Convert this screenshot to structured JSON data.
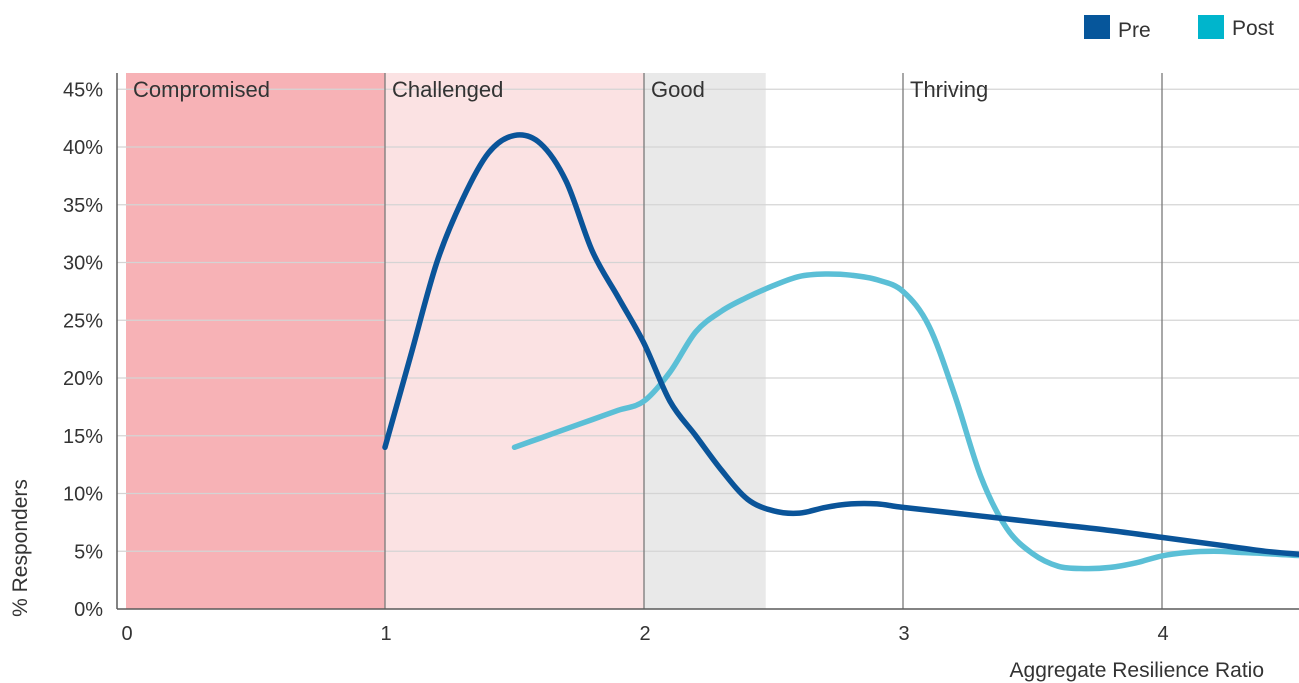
{
  "chart_data": {
    "type": "line",
    "xlabel": "Aggregate Resilience Ratio",
    "ylabel": "% Responders",
    "xlim": [
      0,
      4.6
    ],
    "ylim": [
      0,
      45
    ],
    "x_ticks": [
      {
        "value": 0,
        "label": "0"
      },
      {
        "value": 1,
        "label": "1"
      },
      {
        "value": 2,
        "label": "2"
      },
      {
        "value": 3,
        "label": "3"
      },
      {
        "value": 4,
        "label": "4"
      }
    ],
    "y_ticks": [
      {
        "value": 0,
        "label": "0%"
      },
      {
        "value": 5,
        "label": "5%"
      },
      {
        "value": 10,
        "label": "10%"
      },
      {
        "value": 15,
        "label": "15%"
      },
      {
        "value": 20,
        "label": "20%"
      },
      {
        "value": 25,
        "label": "25%"
      },
      {
        "value": 30,
        "label": "30%"
      },
      {
        "value": 35,
        "label": "35%"
      },
      {
        "value": 40,
        "label": "40%"
      },
      {
        "value": 45,
        "label": "45%"
      }
    ],
    "grid": "horizontal",
    "legend_position": "top-right",
    "zones": [
      {
        "label": "Compromised",
        "from": 0,
        "to": 1,
        "color": "#f7b2b6"
      },
      {
        "label": "Challenged",
        "from": 1,
        "to": 2,
        "color": "#fbe2e3"
      },
      {
        "label": "Good",
        "from": 2,
        "to": 2.47,
        "color": "#e9e9e9"
      },
      {
        "label": "Thriving",
        "from": 3,
        "to": 4.6,
        "color": "#ffffff"
      }
    ],
    "vertical_lines": [
      1,
      2,
      3,
      4
    ],
    "series": [
      {
        "name": "Pre",
        "color": "#0a5499",
        "points": [
          [
            1.0,
            14.0
          ],
          [
            1.1,
            22.0
          ],
          [
            1.2,
            30.0
          ],
          [
            1.3,
            35.5
          ],
          [
            1.4,
            39.5
          ],
          [
            1.5,
            41.0
          ],
          [
            1.6,
            40.3
          ],
          [
            1.7,
            37.0
          ],
          [
            1.8,
            31.0
          ],
          [
            1.9,
            27.0
          ],
          [
            2.0,
            23.0
          ],
          [
            2.1,
            18.0
          ],
          [
            2.2,
            15.0
          ],
          [
            2.3,
            12.0
          ],
          [
            2.4,
            9.5
          ],
          [
            2.5,
            8.5
          ],
          [
            2.6,
            8.3
          ],
          [
            2.7,
            8.8
          ],
          [
            2.8,
            9.1
          ],
          [
            2.9,
            9.1
          ],
          [
            3.0,
            8.8
          ],
          [
            3.2,
            8.3
          ],
          [
            3.4,
            7.8
          ],
          [
            3.6,
            7.3
          ],
          [
            3.8,
            6.8
          ],
          [
            4.0,
            6.2
          ],
          [
            4.2,
            5.6
          ],
          [
            4.4,
            5.0
          ],
          [
            4.55,
            4.7
          ]
        ]
      },
      {
        "name": "Post",
        "color": "#5bbfd6",
        "points": [
          [
            1.5,
            14.0
          ],
          [
            1.6,
            14.8
          ],
          [
            1.7,
            15.6
          ],
          [
            1.8,
            16.4
          ],
          [
            1.9,
            17.2
          ],
          [
            2.0,
            18.0
          ],
          [
            2.1,
            20.5
          ],
          [
            2.2,
            24.0
          ],
          [
            2.3,
            25.8
          ],
          [
            2.4,
            27.0
          ],
          [
            2.5,
            28.0
          ],
          [
            2.6,
            28.8
          ],
          [
            2.7,
            29.0
          ],
          [
            2.8,
            28.9
          ],
          [
            2.9,
            28.5
          ],
          [
            3.0,
            27.5
          ],
          [
            3.1,
            24.5
          ],
          [
            3.2,
            18.5
          ],
          [
            3.3,
            11.5
          ],
          [
            3.4,
            7.0
          ],
          [
            3.5,
            4.8
          ],
          [
            3.6,
            3.7
          ],
          [
            3.7,
            3.5
          ],
          [
            3.8,
            3.6
          ],
          [
            3.9,
            4.0
          ],
          [
            4.0,
            4.6
          ],
          [
            4.1,
            4.9
          ],
          [
            4.2,
            5.0
          ],
          [
            4.3,
            4.9
          ],
          [
            4.4,
            4.8
          ],
          [
            4.55,
            4.6
          ]
        ]
      }
    ]
  }
}
